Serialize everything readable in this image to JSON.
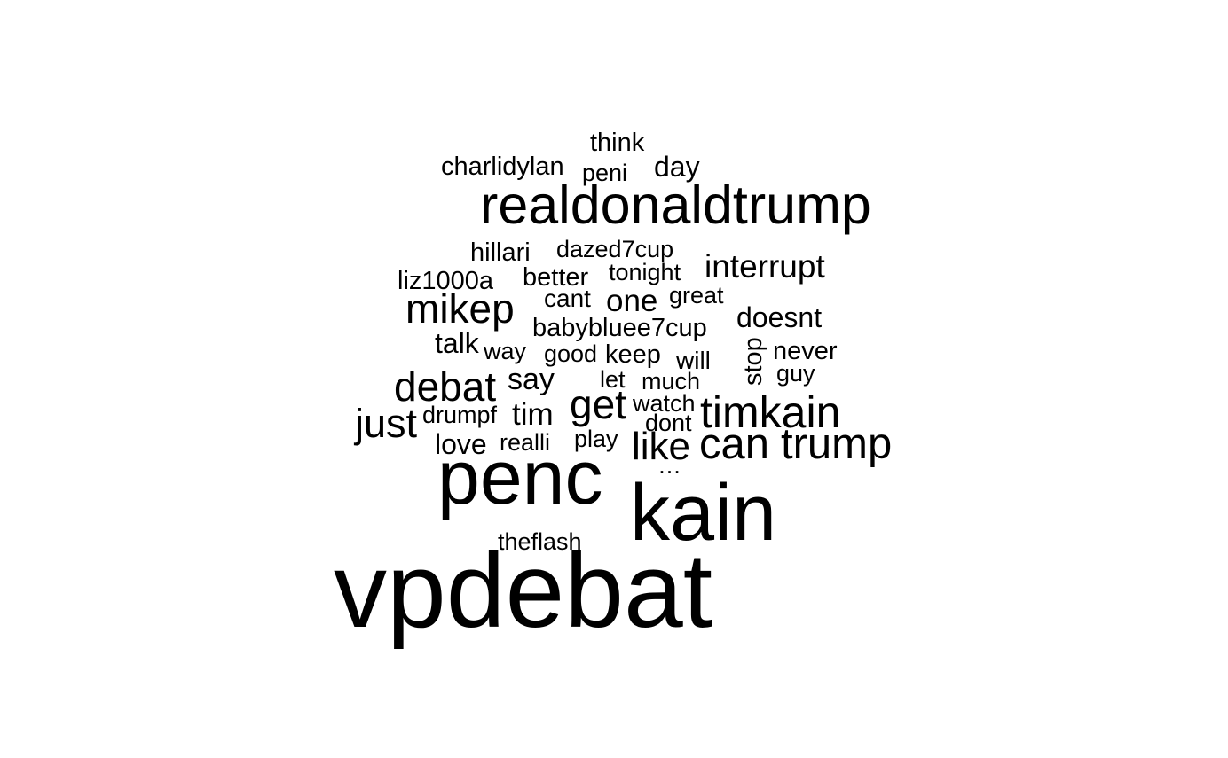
{
  "words": [
    {
      "text": "vpdebat",
      "weight": 100
    },
    {
      "text": "penc",
      "weight": 80
    },
    {
      "text": "kain",
      "weight": 80
    },
    {
      "text": "realdonaldtrump",
      "weight": 55
    },
    {
      "text": "timkain",
      "weight": 42
    },
    {
      "text": "trump",
      "weight": 42
    },
    {
      "text": "can",
      "weight": 40
    },
    {
      "text": "mikep",
      "weight": 40
    },
    {
      "text": "debat",
      "weight": 40
    },
    {
      "text": "get",
      "weight": 40
    },
    {
      "text": "just",
      "weight": 38
    },
    {
      "text": "like",
      "weight": 38
    },
    {
      "text": "interrupt",
      "weight": 36
    },
    {
      "text": "one",
      "weight": 33
    },
    {
      "text": "tim",
      "weight": 33
    },
    {
      "text": "say",
      "weight": 33
    },
    {
      "text": "doesnt",
      "weight": 31
    },
    {
      "text": "talk",
      "weight": 30
    },
    {
      "text": "love",
      "weight": 30
    },
    {
      "text": "day",
      "weight": 30
    },
    {
      "text": "think",
      "weight": 28
    },
    {
      "text": "charlidylan",
      "weight": 28
    },
    {
      "text": "hillari",
      "weight": 28
    },
    {
      "text": "liz1000a",
      "weight": 28
    },
    {
      "text": "better",
      "weight": 28
    },
    {
      "text": "babybluee7cup",
      "weight": 28
    },
    {
      "text": "keep",
      "weight": 28
    },
    {
      "text": "never",
      "weight": 28
    },
    {
      "text": "stop",
      "weight": 28
    },
    {
      "text": "cant",
      "weight": 27
    },
    {
      "text": "will",
      "weight": 27
    },
    {
      "text": "dazed7cup",
      "weight": 26
    },
    {
      "text": "tonight",
      "weight": 26
    },
    {
      "text": "great",
      "weight": 26
    },
    {
      "text": "way",
      "weight": 26
    },
    {
      "text": "good",
      "weight": 26
    },
    {
      "text": "much",
      "weight": 26
    },
    {
      "text": "drumpf",
      "weight": 26
    },
    {
      "text": "watch",
      "weight": 26
    },
    {
      "text": "dont",
      "weight": 26
    },
    {
      "text": "realli",
      "weight": 26
    },
    {
      "text": "play",
      "weight": 26
    },
    {
      "text": "theflash",
      "weight": 26
    },
    {
      "text": "guy",
      "weight": 25
    },
    {
      "text": "let",
      "weight": 25
    },
    {
      "text": "peni",
      "weight": 25
    },
    {
      "text": "…",
      "weight": 25
    }
  ]
}
